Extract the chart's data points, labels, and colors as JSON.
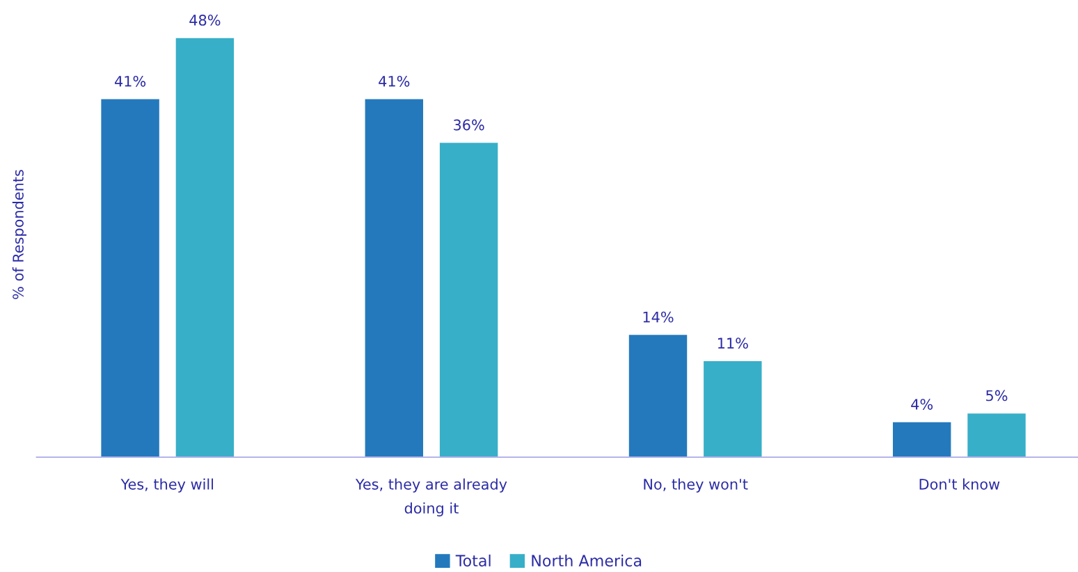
{
  "chart_data": {
    "type": "bar",
    "ylabel": "% of Respondents",
    "categories": [
      "Yes, they will",
      "Yes, they are already\ndoing it",
      "No, they won't",
      "Don't know"
    ],
    "series": [
      {
        "name": "Total",
        "color": "#2479bd",
        "values": [
          41,
          41,
          14,
          4
        ],
        "value_labels": [
          "41%",
          "41%",
          "14%",
          "4%"
        ]
      },
      {
        "name": "North America",
        "color": "#38afc8",
        "values": [
          48,
          36,
          11,
          5
        ],
        "value_labels": [
          "48%",
          "36%",
          "11%",
          "5%"
        ]
      }
    ],
    "legend": "bottom"
  }
}
